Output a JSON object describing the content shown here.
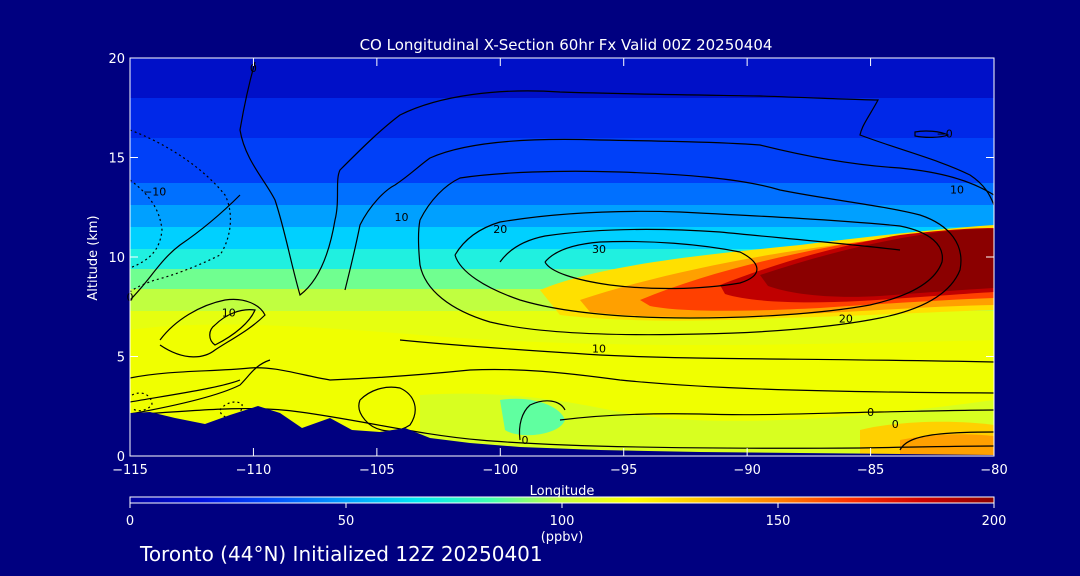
{
  "chart_data": {
    "type": "heatmap",
    "title": "CO Longitudinal X-Section 60hr  Fx Valid 00Z 20250404",
    "xlabel": "Longitude",
    "ylabel": "Altitude (km)",
    "xlim": [
      -115,
      -80
    ],
    "ylim": [
      0,
      20
    ],
    "x_ticks": [
      -115,
      -110,
      -105,
      -100,
      -95,
      -90,
      -85,
      -80
    ],
    "x_tick_labels": [
      "−115",
      "−110",
      "−105",
      "−100",
      "−95",
      "−90",
      "−85",
      "−80"
    ],
    "y_ticks": [
      0,
      5,
      10,
      15,
      20
    ],
    "y_tick_labels": [
      "0",
      "5",
      "10",
      "15",
      "20"
    ],
    "colorbar": {
      "label": "(ppbv)",
      "range": [
        0,
        200
      ],
      "ticks": [
        0,
        50,
        100,
        150,
        200
      ],
      "tick_labels": [
        "0",
        "50",
        "100",
        "150",
        "200"
      ],
      "colors": [
        "#0000a0",
        "#0010e0",
        "#0050ff",
        "#00a0ff",
        "#00e8f0",
        "#40ffb0",
        "#c8ff40",
        "#ffff00",
        "#ffc000",
        "#ff8000",
        "#ff3000",
        "#d00000",
        "#8b0000"
      ]
    },
    "contour_labels": [
      {
        "text": "0",
        "lon": -115.0,
        "alt": 8.0
      },
      {
        "text": "0",
        "lon": -110.0,
        "alt": 19.5
      },
      {
        "text": "−10",
        "lon": -114.0,
        "alt": 13.3
      },
      {
        "text": "10",
        "lon": -111.0,
        "alt": 7.2
      },
      {
        "text": "10",
        "lon": -104.0,
        "alt": 12.0
      },
      {
        "text": "20",
        "lon": -100.0,
        "alt": 11.4
      },
      {
        "text": "30",
        "lon": -96.0,
        "alt": 10.4
      },
      {
        "text": "20",
        "lon": -86.0,
        "alt": 6.9
      },
      {
        "text": "10",
        "lon": -96.0,
        "alt": 5.4
      },
      {
        "text": "10",
        "lon": -81.5,
        "alt": 13.4
      },
      {
        "text": "−0",
        "lon": -82.0,
        "alt": 16.2
      },
      {
        "text": "0",
        "lon": -85.0,
        "alt": 2.2
      },
      {
        "text": "0",
        "lon": -84.0,
        "alt": 1.6
      },
      {
        "text": "0",
        "lon": -99.0,
        "alt": 0.8
      }
    ]
  },
  "footer": "Toronto (44°N) Initialized 12Z 20250401"
}
